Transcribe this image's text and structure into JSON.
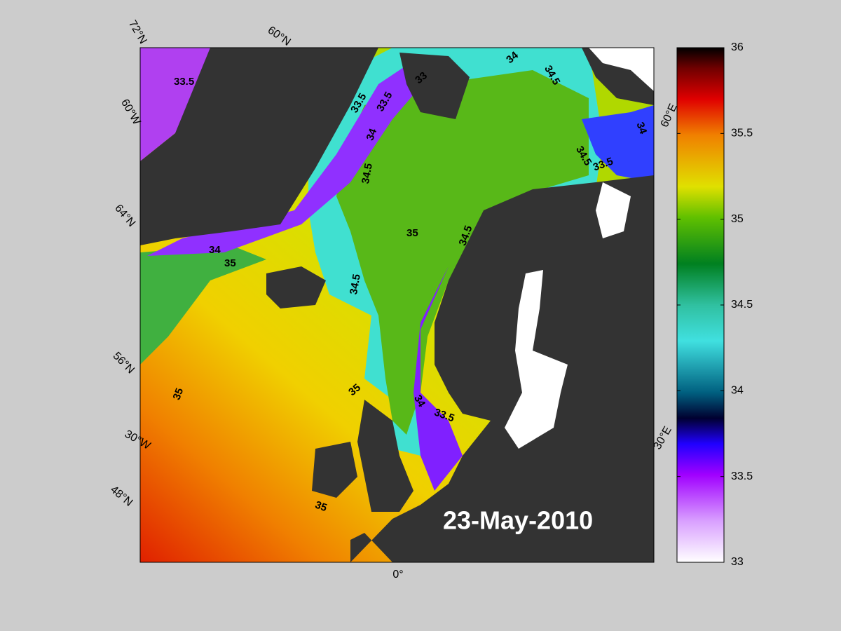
{
  "map": {
    "graticule_labels": [
      "72°N",
      "60°N",
      "60°W",
      "64°N",
      "56°N",
      "30°W",
      "48°N",
      "0°",
      "60°E",
      "30°E"
    ],
    "contour_labels": [
      "33.5",
      "33.5",
      "33.5",
      "33",
      "34",
      "34.5",
      "34",
      "34.5",
      "35",
      "34.5",
      "34.5",
      "34.5",
      "33.5",
      "34",
      "35",
      "34",
      "35",
      "35",
      "34",
      "33.5",
      "35"
    ],
    "date": "23-May-2010"
  },
  "colorbar": {
    "lim": [
      33,
      36
    ],
    "ticks": [
      33,
      33.5,
      34,
      34.5,
      35,
      35.5,
      36
    ]
  }
}
